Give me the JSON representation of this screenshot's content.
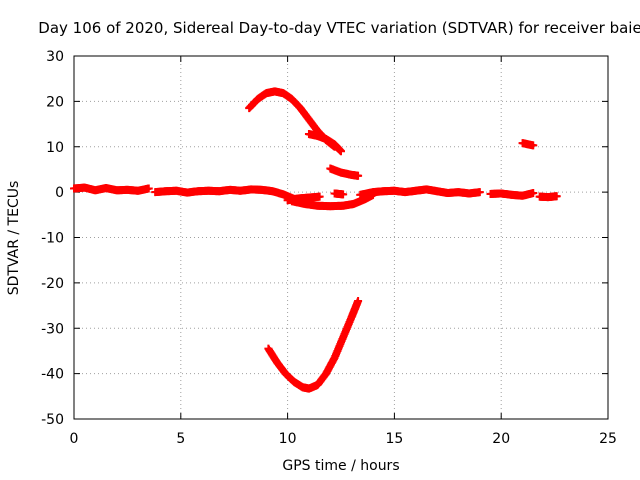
{
  "chart_data": {
    "type": "scatter",
    "title": "Day 106 of 2020, Sidereal Day-to-day VTEC variation (SDTVAR) for receiver baie",
    "xlabel": "GPS time / hours",
    "ylabel": "SDTVAR / TECUs",
    "xlim": [
      0,
      25
    ],
    "ylim": [
      -50,
      30
    ],
    "xticks": [
      "0",
      "5",
      "10",
      "15",
      "20",
      "25"
    ],
    "yticks": [
      "30",
      "20",
      "10",
      "0",
      "-10",
      "-20",
      "-30",
      "-40",
      "-50"
    ],
    "grid": true,
    "marker": "+",
    "color": "#ff0000",
    "series": [
      {
        "name": "near-zero track A",
        "x": [
          0.0,
          0.5,
          1.0,
          1.5,
          2.0,
          2.5,
          3.0,
          3.5
        ],
        "y": [
          0.8,
          1.0,
          0.4,
          0.9,
          0.4,
          0.5,
          0.3,
          0.8
        ]
      },
      {
        "name": "near-zero track B",
        "x": [
          3.8,
          4.3,
          4.8,
          5.3,
          5.8,
          6.3,
          6.8,
          7.3,
          7.8,
          8.3,
          8.8,
          9.3,
          9.8,
          10.3
        ],
        "y": [
          0.0,
          0.2,
          0.3,
          -0.1,
          0.2,
          0.3,
          0.2,
          0.5,
          0.3,
          0.6,
          0.5,
          0.2,
          -0.5,
          -1.5
        ]
      },
      {
        "name": "near-zero track C",
        "x": [
          10.0,
          10.5,
          11.0,
          11.5
        ],
        "y": [
          -1.8,
          -1.4,
          -1.2,
          -1.0
        ]
      },
      {
        "name": "near-zero track D",
        "x": [
          12.2,
          12.6
        ],
        "y": [
          -0.3,
          -0.5
        ]
      },
      {
        "name": "near-zero track E",
        "x": [
          10.2,
          10.8,
          11.4,
          12.0,
          12.6,
          13.1,
          13.6,
          14.0
        ],
        "y": [
          -2.0,
          -2.6,
          -3.0,
          -3.1,
          -3.0,
          -2.6,
          -1.6,
          -0.6
        ]
      },
      {
        "name": "near-zero track F",
        "x": [
          13.4,
          14.0,
          14.5,
          15.0,
          15.5,
          16.0,
          16.5,
          17.0,
          17.5,
          18.0,
          18.5,
          19.0
        ],
        "y": [
          -0.6,
          0.0,
          0.2,
          0.3,
          0.0,
          0.3,
          0.6,
          0.2,
          -0.2,
          0.0,
          -0.3,
          0.0
        ]
      },
      {
        "name": "near-zero track G",
        "x": [
          19.5,
          20.0,
          20.5,
          21.0,
          21.5
        ],
        "y": [
          -0.4,
          -0.3,
          -0.6,
          -0.8,
          -0.2
        ]
      },
      {
        "name": "near-zero track H",
        "x": [
          21.8,
          22.2,
          22.6
        ],
        "y": [
          -1.0,
          -1.1,
          -0.9
        ]
      },
      {
        "name": "upper arc",
        "x": [
          8.2,
          8.6,
          9.0,
          9.4,
          9.8,
          10.2,
          10.6,
          11.0,
          11.4,
          11.8,
          12.2
        ],
        "y": [
          18.5,
          20.5,
          21.8,
          22.2,
          21.8,
          20.5,
          18.5,
          16.0,
          13.5,
          11.5,
          10.0
        ]
      },
      {
        "name": "upper segment",
        "x": [
          11.0,
          11.4,
          11.8,
          12.2,
          12.5
        ],
        "y": [
          12.8,
          12.4,
          11.7,
          10.5,
          9.0
        ]
      },
      {
        "name": "small segment 1",
        "x": [
          12.0,
          12.5,
          13.0,
          13.3
        ],
        "y": [
          5.2,
          4.3,
          3.8,
          3.6
        ]
      },
      {
        "name": "small segment 2",
        "x": [
          21.0,
          21.5
        ],
        "y": [
          10.8,
          10.3
        ]
      },
      {
        "name": "lower arc",
        "x": [
          9.1,
          9.5,
          9.9,
          10.3,
          10.7,
          11.0,
          11.4,
          11.8,
          12.2,
          12.6,
          13.0,
          13.3
        ],
        "y": [
          -34.5,
          -37.5,
          -40.0,
          -41.8,
          -43.0,
          -43.3,
          -42.5,
          -40.0,
          -36.5,
          -32.0,
          -27.5,
          -24.0
        ]
      }
    ]
  }
}
